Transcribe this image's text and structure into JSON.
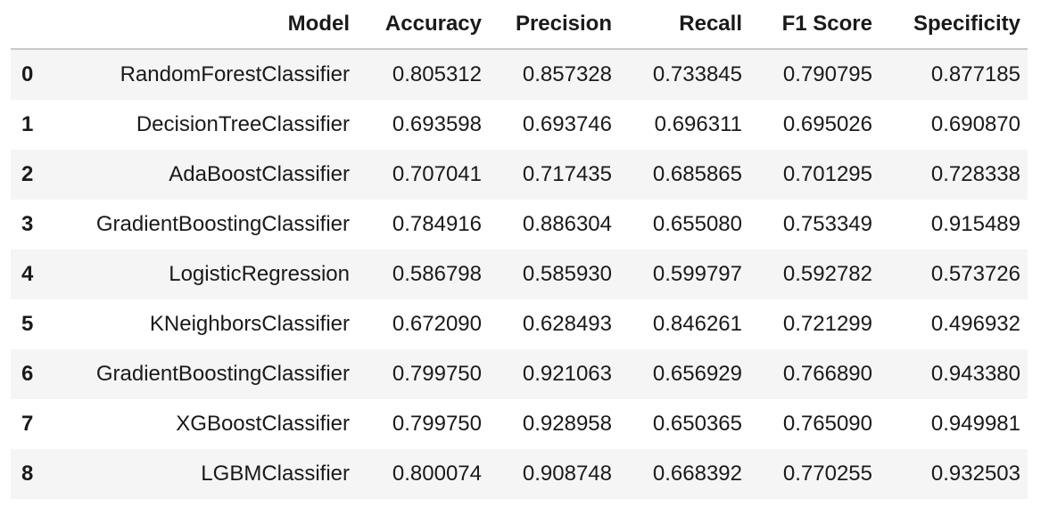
{
  "table": {
    "columns": [
      "",
      "Model",
      "Accuracy",
      "Precision",
      "Recall",
      "F1 Score",
      "Specificity"
    ],
    "rows": [
      {
        "index": "0",
        "model": "RandomForestClassifier",
        "accuracy": "0.805312",
        "precision": "0.857328",
        "recall": "0.733845",
        "f1": "0.790795",
        "specificity": "0.877185"
      },
      {
        "index": "1",
        "model": "DecisionTreeClassifier",
        "accuracy": "0.693598",
        "precision": "0.693746",
        "recall": "0.696311",
        "f1": "0.695026",
        "specificity": "0.690870"
      },
      {
        "index": "2",
        "model": "AdaBoostClassifier",
        "accuracy": "0.707041",
        "precision": "0.717435",
        "recall": "0.685865",
        "f1": "0.701295",
        "specificity": "0.728338"
      },
      {
        "index": "3",
        "model": "GradientBoostingClassifier",
        "accuracy": "0.784916",
        "precision": "0.886304",
        "recall": "0.655080",
        "f1": "0.753349",
        "specificity": "0.915489"
      },
      {
        "index": "4",
        "model": "LogisticRegression",
        "accuracy": "0.586798",
        "precision": "0.585930",
        "recall": "0.599797",
        "f1": "0.592782",
        "specificity": "0.573726"
      },
      {
        "index": "5",
        "model": "KNeighborsClassifier",
        "accuracy": "0.672090",
        "precision": "0.628493",
        "recall": "0.846261",
        "f1": "0.721299",
        "specificity": "0.496932"
      },
      {
        "index": "6",
        "model": "GradientBoostingClassifier",
        "accuracy": "0.799750",
        "precision": "0.921063",
        "recall": "0.656929",
        "f1": "0.766890",
        "specificity": "0.943380"
      },
      {
        "index": "7",
        "model": "XGBoostClassifier",
        "accuracy": "0.799750",
        "precision": "0.928958",
        "recall": "0.650365",
        "f1": "0.765090",
        "specificity": "0.949981"
      },
      {
        "index": "8",
        "model": "LGBMClassifier",
        "accuracy": "0.800074",
        "precision": "0.908748",
        "recall": "0.668392",
        "f1": "0.770255",
        "specificity": "0.932503"
      }
    ]
  },
  "colors": {
    "stripe": "#f5f5f5",
    "header_rule": "#c9c9c9",
    "text": "#1a1a1a"
  }
}
